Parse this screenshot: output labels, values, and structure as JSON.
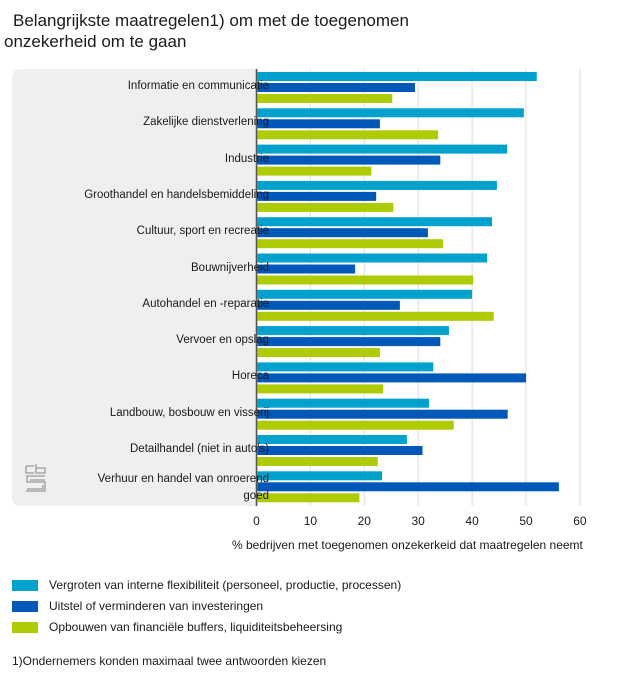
{
  "title": [
    "Belangrijkste maatregelen1) om met de toegenomen",
    "onzekerheid om te gaan"
  ],
  "chart_data": {
    "type": "bar",
    "orientation": "horizontal",
    "title": "Belangrijkste maatregelen1) om met de toegenomen onzekerheid om te gaan",
    "xlabel": "% bedrijven met toegenomen onzekerkeid dat maatregelen neemt",
    "ylabel": "",
    "xlim": [
      0,
      60
    ],
    "xticks": [
      "0",
      "10",
      "20",
      "30",
      "40",
      "50",
      "60"
    ],
    "grid": true,
    "legend_position": "bottom",
    "categories": [
      "Informatie en communicatie",
      "Zakelijke dienstverlening",
      "Industrie",
      "Groothandel en handelsbemiddeling",
      "Cultuur, sport en recreatie",
      "Bouwnijverheid",
      "Autohandel en -reparatie",
      "Vervoer en opslag",
      "Horeca",
      "Landbouw, bosbouw en visserij",
      "Detailhandel (niet in auto's)",
      "Verhuur en handel van onroerend goed"
    ],
    "series": [
      {
        "name": "Vergroten van interne flexibiliteit (personeel, productie, processen)",
        "color": "#00a1cd",
        "values": [
          52.0,
          49.6,
          46.5,
          44.6,
          43.7,
          42.8,
          40.0,
          35.7,
          32.8,
          32.0,
          27.9,
          23.3
        ]
      },
      {
        "name": "Uitstel of verminderen van investeringen",
        "color": "#0058b8",
        "values": [
          29.4,
          22.9,
          34.1,
          22.2,
          31.8,
          18.3,
          26.6,
          34.1,
          50.0,
          46.6,
          30.8,
          56.1
        ]
      },
      {
        "name": "Opbouwen van financiële buffers, liquiditeitsbeheersing",
        "color": "#afcb05",
        "values": [
          25.2,
          33.7,
          21.3,
          25.4,
          34.6,
          40.2,
          44.0,
          22.9,
          23.5,
          36.6,
          22.5,
          19.1
        ]
      }
    ]
  },
  "footnote": "1)Ondernemers konden maximaal twee antwoorden kiezen",
  "logo": "cbs-logo"
}
